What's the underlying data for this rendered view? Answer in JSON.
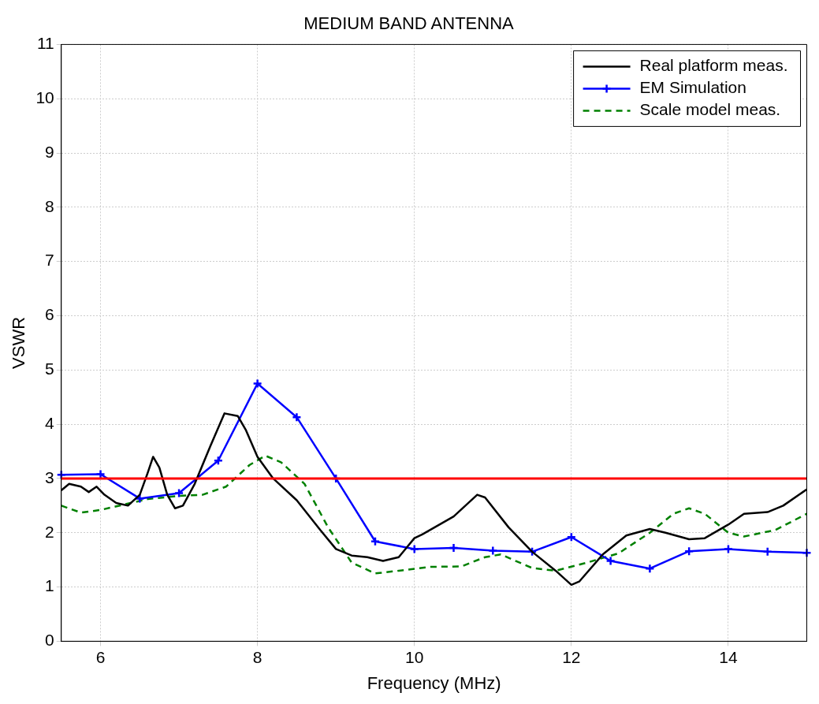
{
  "chart_data": {
    "type": "line",
    "title": "MEDIUM BAND ANTENNA",
    "xlabel": "Frequency (MHz)",
    "ylabel": "VSWR",
    "xlim": [
      5.5,
      15
    ],
    "xticks": [
      6,
      8,
      10,
      12,
      14
    ],
    "ylim": [
      0,
      11
    ],
    "yticks": [
      0,
      1,
      2,
      3,
      4,
      5,
      6,
      7,
      8,
      9,
      10,
      11
    ],
    "grid": true,
    "legend": "top right",
    "ref_lines": [
      {
        "axis": "y",
        "value": 3,
        "color": "#ff0000"
      }
    ],
    "series": [
      {
        "name": "Real platform meas.",
        "color": "#000000",
        "marker": "none",
        "line_style": "solid",
        "x": [
          5.5,
          5.6,
          5.75,
          5.85,
          5.95,
          6.05,
          6.2,
          6.35,
          6.5,
          6.6,
          6.67,
          6.75,
          6.85,
          6.95,
          7.05,
          7.2,
          7.4,
          7.58,
          7.75,
          7.85,
          8.0,
          8.2,
          8.5,
          8.8,
          9.0,
          9.2,
          9.4,
          9.6,
          9.8,
          10.0,
          10.1,
          10.5,
          10.8,
          10.9,
          11.2,
          11.5,
          11.8,
          12.0,
          12.1,
          12.4,
          12.7,
          13.0,
          13.2,
          13.5,
          13.7,
          14.0,
          14.2,
          14.5,
          14.7,
          15.0
        ],
        "values": [
          2.78,
          2.9,
          2.85,
          2.75,
          2.85,
          2.7,
          2.55,
          2.5,
          2.7,
          3.1,
          3.4,
          3.2,
          2.7,
          2.45,
          2.5,
          2.9,
          3.6,
          4.2,
          4.15,
          3.9,
          3.4,
          3.0,
          2.6,
          2.05,
          1.7,
          1.58,
          1.55,
          1.48,
          1.55,
          1.9,
          1.97,
          2.3,
          2.7,
          2.65,
          2.1,
          1.65,
          1.3,
          1.04,
          1.1,
          1.6,
          1.95,
          2.07,
          2.0,
          1.88,
          1.9,
          2.15,
          2.35,
          2.38,
          2.5,
          2.8
        ]
      },
      {
        "name": "EM Simulation",
        "color": "#0000ff",
        "marker": "cross",
        "line_style": "solid",
        "x": [
          5.5,
          6,
          6.5,
          7,
          7.5,
          8,
          8.5,
          9,
          9.5,
          10,
          10.5,
          11,
          11.5,
          12,
          12.5,
          13,
          13.5,
          14,
          14.5,
          15
        ],
        "values": [
          3.07,
          3.08,
          2.63,
          2.73,
          3.33,
          4.75,
          4.13,
          3.0,
          1.84,
          1.7,
          1.72,
          1.67,
          1.65,
          1.92,
          1.48,
          1.34,
          1.66,
          1.7,
          1.65,
          1.63
        ]
      },
      {
        "name": "Scale model meas.",
        "color": "#008000",
        "marker": "none",
        "line_style": "dashed",
        "x": [
          5.5,
          5.75,
          6.0,
          6.3,
          6.6,
          7.0,
          7.3,
          7.6,
          7.9,
          8.1,
          8.3,
          8.6,
          8.9,
          9.2,
          9.5,
          9.8,
          10.2,
          10.6,
          10.9,
          11.1,
          11.5,
          11.8,
          12.2,
          12.6,
          13.0,
          13.3,
          13.5,
          13.7,
          14.0,
          14.2,
          14.6,
          15.0
        ],
        "values": [
          2.5,
          2.37,
          2.42,
          2.52,
          2.62,
          2.68,
          2.7,
          2.85,
          3.25,
          3.42,
          3.3,
          2.9,
          2.1,
          1.45,
          1.25,
          1.3,
          1.37,
          1.38,
          1.55,
          1.6,
          1.35,
          1.3,
          1.45,
          1.62,
          2.0,
          2.35,
          2.45,
          2.35,
          2.0,
          1.93,
          2.05,
          2.35
        ]
      }
    ]
  }
}
